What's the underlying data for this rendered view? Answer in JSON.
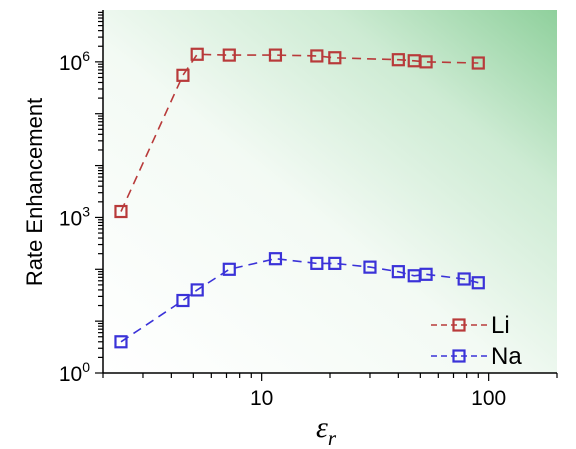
{
  "chart_data": {
    "type": "scatter",
    "xlabel": "ε",
    "xlabel_subscript": "r",
    "ylabel": "Rate Enhancement",
    "xscale": "log",
    "yscale": "log",
    "xlim": [
      2,
      200
    ],
    "ylim": [
      1,
      10000000.0
    ],
    "x_ticks": [
      {
        "value": 10,
        "label": "10"
      },
      {
        "value": 100,
        "label": "100"
      }
    ],
    "y_ticks": [
      {
        "value": 1,
        "base": "10",
        "exp": "0"
      },
      {
        "value": 1000,
        "base": "10",
        "exp": "3"
      },
      {
        "value": 1000000,
        "base": "10",
        "exp": "6"
      }
    ],
    "grid": false,
    "background": "gradient white to green (top-right)",
    "legend_position": "bottom-right",
    "series": [
      {
        "name": "Li",
        "color": "#b83a3a",
        "marker": "open-square",
        "line": "dashed",
        "x": [
          2.4,
          4.5,
          5.2,
          7.2,
          11.5,
          17.5,
          21,
          40,
          47,
          53,
          90
        ],
        "y": [
          1300,
          550000,
          1400000,
          1350000,
          1350000,
          1300000,
          1200000,
          1100000,
          1050000,
          1000000,
          950000
        ]
      },
      {
        "name": "Na",
        "color": "#3a32d8",
        "marker": "open-square",
        "line": "dashed",
        "x": [
          2.4,
          4.5,
          5.2,
          7.2,
          11.5,
          17.5,
          21,
          30,
          40,
          47,
          53,
          78,
          90
        ],
        "y": [
          4,
          25,
          40,
          100,
          160,
          130,
          130,
          110,
          90,
          75,
          80,
          65,
          55
        ]
      }
    ]
  }
}
